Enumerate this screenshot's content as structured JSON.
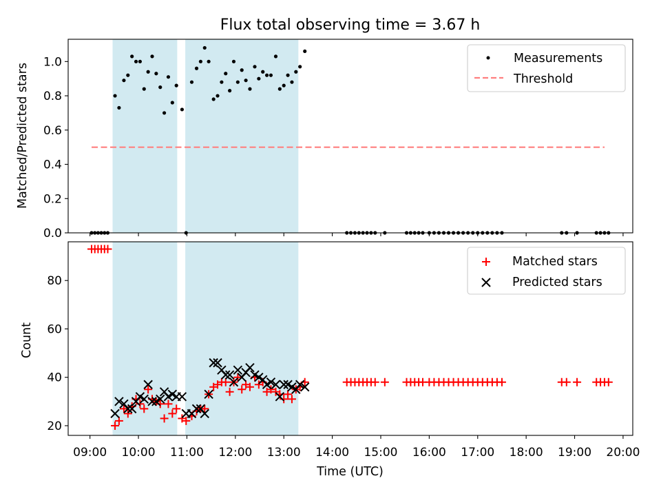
{
  "chart_data": [
    {
      "type": "scatter",
      "title": "Flux total observing time = 3.67 h",
      "xlabel": "",
      "ylabel": "Matched/Predicted stars",
      "xlim": [
        "08:33",
        "20:12"
      ],
      "ylim": [
        0,
        1.13
      ],
      "yticks": [
        0.0,
        0.2,
        0.4,
        0.6,
        0.8,
        1.0
      ],
      "ytick_labels": [
        "0.0",
        "0.2",
        "0.4",
        "0.6",
        "0.8",
        "1.0"
      ],
      "grid": false,
      "legend_position": "top-right",
      "shaded_intervals": [
        [
          "09:28",
          "10:48"
        ],
        [
          "10:58",
          "13:18"
        ]
      ],
      "shade_color": "#add8e6",
      "series": [
        {
          "name": "Measurements",
          "marker": "dot",
          "color": "#000000",
          "points": [
            [
              "09:02",
              0
            ],
            [
              "09:06",
              0
            ],
            [
              "09:10",
              0
            ],
            [
              "09:14",
              0
            ],
            [
              "09:18",
              0
            ],
            [
              "09:22",
              0
            ],
            [
              "09:31",
              0.8
            ],
            [
              "09:36",
              0.73
            ],
            [
              "09:42",
              0.89
            ],
            [
              "09:47",
              0.92
            ],
            [
              "09:52",
              1.03
            ],
            [
              "09:57",
              1.0
            ],
            [
              "10:02",
              1.0
            ],
            [
              "10:07",
              0.84
            ],
            [
              "10:12",
              0.94
            ],
            [
              "10:17",
              1.03
            ],
            [
              "10:22",
              0.93
            ],
            [
              "10:27",
              0.85
            ],
            [
              "10:32",
              0.7
            ],
            [
              "10:37",
              0.91
            ],
            [
              "10:42",
              0.76
            ],
            [
              "10:47",
              0.86
            ],
            [
              "10:54",
              0.72
            ],
            [
              "10:59",
              0
            ],
            [
              "11:06",
              0.88
            ],
            [
              "11:12",
              0.96
            ],
            [
              "11:17",
              1.0
            ],
            [
              "11:22",
              1.08
            ],
            [
              "11:27",
              1.0
            ],
            [
              "11:33",
              0.78
            ],
            [
              "11:38",
              0.8
            ],
            [
              "11:43",
              0.88
            ],
            [
              "11:48",
              0.93
            ],
            [
              "11:53",
              0.83
            ],
            [
              "11:58",
              1.0
            ],
            [
              "12:03",
              0.88
            ],
            [
              "12:08",
              0.95
            ],
            [
              "12:13",
              0.89
            ],
            [
              "12:18",
              0.84
            ],
            [
              "12:24",
              0.97
            ],
            [
              "12:29",
              0.9
            ],
            [
              "12:34",
              0.94
            ],
            [
              "12:39",
              0.92
            ],
            [
              "12:44",
              0.92
            ],
            [
              "12:50",
              1.03
            ],
            [
              "12:55",
              0.84
            ],
            [
              "13:00",
              0.86
            ],
            [
              "13:05",
              0.92
            ],
            [
              "13:10",
              0.88
            ],
            [
              "13:15",
              0.94
            ],
            [
              "13:20",
              0.97
            ],
            [
              "13:26",
              1.06
            ],
            [
              "14:18",
              0
            ],
            [
              "14:23",
              0
            ],
            [
              "14:28",
              0
            ],
            [
              "14:33",
              0
            ],
            [
              "14:38",
              0
            ],
            [
              "14:43",
              0
            ],
            [
              "14:48",
              0
            ],
            [
              "14:53",
              0
            ],
            [
              "15:05",
              0
            ],
            [
              "15:32",
              0
            ],
            [
              "15:37",
              0
            ],
            [
              "15:42",
              0
            ],
            [
              "15:47",
              0
            ],
            [
              "15:52",
              0
            ],
            [
              "16:00",
              0
            ],
            [
              "16:06",
              0
            ],
            [
              "16:12",
              0
            ],
            [
              "16:18",
              0
            ],
            [
              "16:24",
              0
            ],
            [
              "16:30",
              0
            ],
            [
              "16:36",
              0
            ],
            [
              "16:42",
              0
            ],
            [
              "16:48",
              0
            ],
            [
              "16:54",
              0
            ],
            [
              "17:00",
              0
            ],
            [
              "17:06",
              0
            ],
            [
              "17:12",
              0
            ],
            [
              "17:18",
              0
            ],
            [
              "17:24",
              0
            ],
            [
              "17:30",
              0
            ],
            [
              "18:44",
              0
            ],
            [
              "18:50",
              0
            ],
            [
              "19:03",
              0
            ],
            [
              "19:27",
              0
            ],
            [
              "19:32",
              0
            ],
            [
              "19:37",
              0
            ],
            [
              "19:42",
              0
            ]
          ]
        },
        {
          "name": "Threshold",
          "kind": "hline",
          "style": "dashed",
          "color": "#ff7f7f",
          "y": 0.5,
          "x_range": [
            "09:02",
            "19:37"
          ]
        }
      ]
    },
    {
      "type": "scatter",
      "title": "",
      "xlabel": "Time (UTC)",
      "ylabel": "Count",
      "xlim": [
        "08:33",
        "20:12"
      ],
      "ylim": [
        16,
        96
      ],
      "yticks": [
        20,
        40,
        60,
        80
      ],
      "ytick_labels": [
        "20",
        "40",
        "60",
        "80"
      ],
      "xticks": [
        "09:00",
        "10:00",
        "11:00",
        "12:00",
        "13:00",
        "14:00",
        "15:00",
        "16:00",
        "17:00",
        "18:00",
        "19:00",
        "20:00"
      ],
      "xtick_labels": [
        "09:00",
        "10:00",
        "11:00",
        "12:00",
        "13:00",
        "14:00",
        "15:00",
        "16:00",
        "17:00",
        "18:00",
        "19:00",
        "20:00"
      ],
      "grid": false,
      "legend_position": "top-right",
      "shaded_intervals": [
        [
          "09:28",
          "10:48"
        ],
        [
          "10:58",
          "13:18"
        ]
      ],
      "shade_color": "#add8e6",
      "series": [
        {
          "name": "Matched stars",
          "marker": "plus",
          "color": "#ff0000",
          "points": [
            [
              "09:02",
              93
            ],
            [
              "09:06",
              93
            ],
            [
              "09:10",
              93
            ],
            [
              "09:14",
              93
            ],
            [
              "09:18",
              93
            ],
            [
              "09:22",
              93
            ],
            [
              "09:31",
              20
            ],
            [
              "09:36",
              22
            ],
            [
              "09:42",
              27
            ],
            [
              "09:47",
              25
            ],
            [
              "09:52",
              28
            ],
            [
              "09:57",
              31
            ],
            [
              "10:02",
              29
            ],
            [
              "10:07",
              27
            ],
            [
              "10:12",
              35
            ],
            [
              "10:17",
              31
            ],
            [
              "10:22",
              30
            ],
            [
              "10:27",
              29
            ],
            [
              "10:32",
              23
            ],
            [
              "10:37",
              29
            ],
            [
              "10:42",
              25
            ],
            [
              "10:47",
              27
            ],
            [
              "10:54",
              23
            ],
            [
              "10:59",
              22
            ],
            [
              "11:06",
              24
            ],
            [
              "11:12",
              26
            ],
            [
              "11:17",
              27
            ],
            [
              "11:22",
              27
            ],
            [
              "11:27",
              33
            ],
            [
              "11:33",
              36
            ],
            [
              "11:38",
              37
            ],
            [
              "11:43",
              38
            ],
            [
              "11:48",
              38
            ],
            [
              "11:53",
              34
            ],
            [
              "11:58",
              38
            ],
            [
              "12:03",
              40
            ],
            [
              "12:08",
              35
            ],
            [
              "12:13",
              37
            ],
            [
              "12:18",
              36
            ],
            [
              "12:24",
              40
            ],
            [
              "12:29",
              37
            ],
            [
              "12:34",
              38
            ],
            [
              "12:39",
              34
            ],
            [
              "12:44",
              35
            ],
            [
              "12:50",
              34
            ],
            [
              "12:55",
              33
            ],
            [
              "13:00",
              31
            ],
            [
              "13:05",
              33
            ],
            [
              "13:10",
              31
            ],
            [
              "13:15",
              35
            ],
            [
              "13:20",
              36
            ],
            [
              "13:26",
              38
            ],
            [
              "14:18",
              38
            ],
            [
              "14:23",
              38
            ],
            [
              "14:28",
              38
            ],
            [
              "14:33",
              38
            ],
            [
              "14:38",
              38
            ],
            [
              "14:43",
              38
            ],
            [
              "14:48",
              38
            ],
            [
              "14:53",
              38
            ],
            [
              "15:05",
              38
            ],
            [
              "15:32",
              38
            ],
            [
              "15:37",
              38
            ],
            [
              "15:42",
              38
            ],
            [
              "15:47",
              38
            ],
            [
              "15:52",
              38
            ],
            [
              "16:00",
              38
            ],
            [
              "16:06",
              38
            ],
            [
              "16:12",
              38
            ],
            [
              "16:18",
              38
            ],
            [
              "16:24",
              38
            ],
            [
              "16:30",
              38
            ],
            [
              "16:36",
              38
            ],
            [
              "16:42",
              38
            ],
            [
              "16:48",
              38
            ],
            [
              "16:54",
              38
            ],
            [
              "17:00",
              38
            ],
            [
              "17:06",
              38
            ],
            [
              "17:12",
              38
            ],
            [
              "17:18",
              38
            ],
            [
              "17:24",
              38
            ],
            [
              "17:30",
              38
            ],
            [
              "18:44",
              38
            ],
            [
              "18:50",
              38
            ],
            [
              "19:03",
              38
            ],
            [
              "19:27",
              38
            ],
            [
              "19:32",
              38
            ],
            [
              "19:37",
              38
            ],
            [
              "19:42",
              38
            ]
          ]
        },
        {
          "name": "Predicted stars",
          "marker": "x",
          "color": "#000000",
          "points": [
            [
              "09:31",
              25
            ],
            [
              "09:36",
              30
            ],
            [
              "09:42",
              29
            ],
            [
              "09:47",
              27
            ],
            [
              "09:52",
              27
            ],
            [
              "09:57",
              30
            ],
            [
              "10:02",
              32
            ],
            [
              "10:07",
              31
            ],
            [
              "10:12",
              37
            ],
            [
              "10:17",
              30
            ],
            [
              "10:22",
              30
            ],
            [
              "10:27",
              31
            ],
            [
              "10:32",
              34
            ],
            [
              "10:37",
              32
            ],
            [
              "10:42",
              33
            ],
            [
              "10:47",
              32
            ],
            [
              "10:54",
              32
            ],
            [
              "10:59",
              25
            ],
            [
              "11:06",
              25
            ],
            [
              "11:12",
              27
            ],
            [
              "11:17",
              27
            ],
            [
              "11:22",
              25
            ],
            [
              "11:27",
              33
            ],
            [
              "11:33",
              46
            ],
            [
              "11:38",
              46
            ],
            [
              "11:43",
              43
            ],
            [
              "11:48",
              41
            ],
            [
              "11:53",
              41
            ],
            [
              "11:58",
              38
            ],
            [
              "12:03",
              43
            ],
            [
              "12:08",
              40
            ],
            [
              "12:13",
              42
            ],
            [
              "12:18",
              44
            ],
            [
              "12:24",
              41
            ],
            [
              "12:29",
              40
            ],
            [
              "12:34",
              39
            ],
            [
              "12:39",
              37
            ],
            [
              "12:44",
              38
            ],
            [
              "12:50",
              37
            ],
            [
              "12:55",
              32
            ],
            [
              "13:00",
              37
            ],
            [
              "13:05",
              37
            ],
            [
              "13:10",
              36
            ],
            [
              "13:15",
              35
            ],
            [
              "13:20",
              37
            ],
            [
              "13:26",
              36
            ]
          ]
        }
      ]
    }
  ]
}
